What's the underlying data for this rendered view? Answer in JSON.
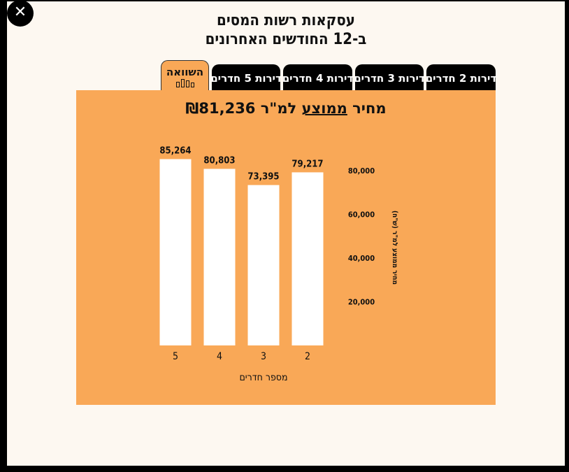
{
  "title_lines": [
    "עסקאות רשות המסים",
    "ב-12 החודשים האחרונים"
  ],
  "close_symbol": "✕",
  "tabs": [
    {
      "label": "דירות 2 חדרים"
    },
    {
      "label": "דירות 3 חדרים"
    },
    {
      "label": "דירות 4 חדרים"
    },
    {
      "label": "דירות 5 חדרים"
    },
    {
      "label": "השוואה",
      "active": true
    }
  ],
  "average": {
    "prefix": "מחיר",
    "underlined": "ממוצע",
    "suffix": "למ\"ר",
    "value": "₪81,236"
  },
  "colors": {
    "panel": "#f9a857",
    "bar": "#ffffff",
    "tab": "#000000"
  },
  "chart_data": {
    "type": "bar",
    "categories": [
      "2",
      "3",
      "4",
      "5"
    ],
    "values": [
      79217,
      73395,
      80803,
      85264
    ],
    "value_labels": [
      "79,217",
      "73,395",
      "80,803",
      "85,264"
    ],
    "xlabel": "מספר חדרים",
    "ylabel": "מחיר ממוצע למ\"ר (ש\"ח)",
    "yticks": [
      20000,
      40000,
      60000,
      80000
    ],
    "ytick_labels": [
      "20,000",
      "40,000",
      "60,000",
      "80,000"
    ],
    "ylim": [
      0,
      80000
    ],
    "x_direction": "right-to-left",
    "grid": false
  }
}
